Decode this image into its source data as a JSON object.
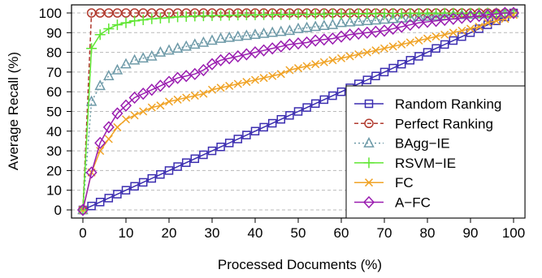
{
  "chart_data": {
    "type": "line",
    "title": "",
    "xlabel": "Processed Documents (%)",
    "ylabel": "Average Recall (%)",
    "xlim": [
      0,
      100
    ],
    "ylim": [
      0,
      100
    ],
    "xticks": [
      0,
      10,
      20,
      30,
      40,
      50,
      60,
      70,
      80,
      90,
      100
    ],
    "yticks": [
      0,
      10,
      20,
      30,
      40,
      50,
      60,
      70,
      80,
      90,
      100
    ],
    "grid": "horizontal dashed",
    "legend_position": "bottom-right",
    "series": [
      {
        "name": "Random Ranking",
        "color": "#3b2db0",
        "marker": "square",
        "dash": "solid",
        "x": [
          0,
          2,
          4,
          6,
          8,
          10,
          12,
          14,
          16,
          18,
          20,
          22,
          24,
          26,
          28,
          30,
          32,
          34,
          36,
          38,
          40,
          42,
          44,
          46,
          48,
          50,
          52,
          54,
          56,
          58,
          60,
          62,
          64,
          66,
          68,
          70,
          72,
          74,
          76,
          78,
          80,
          82,
          84,
          86,
          88,
          90,
          92,
          94,
          96,
          98,
          100
        ],
        "y": [
          0,
          2,
          4,
          6,
          8,
          10,
          12,
          14,
          16,
          18,
          20,
          22,
          24,
          26,
          28,
          30,
          32,
          34,
          36,
          38,
          40,
          42,
          44,
          46,
          48,
          50,
          52,
          54,
          56,
          58,
          60,
          62,
          64,
          66,
          68,
          70,
          72,
          74,
          76,
          78,
          80,
          82,
          84,
          86,
          88,
          90,
          92,
          94,
          96,
          98,
          100
        ]
      },
      {
        "name": "Perfect Ranking",
        "color": "#b03a2e",
        "marker": "circle",
        "dash": "dashed",
        "x": [
          0,
          2,
          4,
          6,
          8,
          10,
          12,
          14,
          16,
          18,
          20,
          22,
          24,
          26,
          28,
          30,
          32,
          34,
          36,
          38,
          40,
          42,
          44,
          46,
          48,
          50,
          52,
          54,
          56,
          58,
          60,
          62,
          64,
          66,
          68,
          70,
          72,
          74,
          76,
          78,
          80,
          82,
          84,
          86,
          88,
          90,
          92,
          94,
          96,
          98,
          100
        ],
        "y": [
          0,
          100,
          100,
          100,
          100,
          100,
          100,
          100,
          100,
          100,
          100,
          100,
          100,
          100,
          100,
          100,
          100,
          100,
          100,
          100,
          100,
          100,
          100,
          100,
          100,
          100,
          100,
          100,
          100,
          100,
          100,
          100,
          100,
          100,
          100,
          100,
          100,
          100,
          100,
          100,
          100,
          100,
          100,
          100,
          100,
          100,
          100,
          100,
          100,
          100,
          100
        ]
      },
      {
        "name": "BAgg−IE",
        "color": "#6e9aa8",
        "marker": "triangle",
        "dash": "dotted",
        "x": [
          0,
          2,
          4,
          6,
          8,
          10,
          12,
          14,
          16,
          18,
          20,
          22,
          24,
          26,
          28,
          30,
          32,
          34,
          36,
          38,
          40,
          42,
          44,
          46,
          48,
          50,
          52,
          54,
          56,
          58,
          60,
          62,
          64,
          66,
          68,
          70,
          72,
          74,
          76,
          78,
          80,
          82,
          84,
          86,
          88,
          90,
          92,
          94,
          96,
          98,
          100
        ],
        "y": [
          0,
          55,
          63,
          68,
          71,
          74,
          76,
          77,
          78,
          80,
          81,
          82,
          83,
          84,
          85,
          86,
          87,
          87.5,
          88,
          88.5,
          89,
          89.5,
          90,
          90.5,
          91,
          92,
          92.5,
          93,
          93.5,
          94,
          95,
          95.3,
          95.7,
          96,
          96.3,
          96.7,
          97,
          97.3,
          97.6,
          98,
          98.2,
          98.4,
          98.6,
          98.8,
          99,
          99.2,
          99.4,
          99.5,
          99.7,
          99.8,
          100
        ]
      },
      {
        "name": "RSVM−IE",
        "color": "#5fe632",
        "marker": "plus",
        "dash": "solid",
        "x": [
          0,
          2,
          4,
          6,
          8,
          10,
          12,
          14,
          16,
          18,
          20,
          22,
          24,
          26,
          28,
          30,
          32,
          34,
          36,
          38,
          40,
          42,
          44,
          46,
          48,
          50,
          52,
          54,
          56,
          58,
          60,
          62,
          64,
          66,
          68,
          70,
          72,
          74,
          76,
          78,
          80,
          82,
          84,
          86,
          88,
          90,
          92,
          94,
          96,
          98,
          100
        ],
        "y": [
          0,
          82,
          89,
          92,
          94,
          95,
          96,
          96.5,
          97,
          97.3,
          97.6,
          98,
          98.2,
          98.4,
          98.5,
          98.6,
          98.7,
          98.8,
          98.9,
          99,
          99,
          99.1,
          99.1,
          99.2,
          99.2,
          99.3,
          99.3,
          99.4,
          99.4,
          99.5,
          99.5,
          99.5,
          99.6,
          99.6,
          99.6,
          99.7,
          99.7,
          99.7,
          99.8,
          99.8,
          99.8,
          99.8,
          99.9,
          99.9,
          99.9,
          99.9,
          100,
          100,
          100,
          100,
          100
        ]
      },
      {
        "name": "FC",
        "color": "#f0a326",
        "marker": "x",
        "dash": "solid",
        "x": [
          0,
          2,
          4,
          6,
          8,
          10,
          12,
          14,
          16,
          18,
          20,
          22,
          24,
          26,
          28,
          30,
          32,
          34,
          36,
          38,
          40,
          42,
          44,
          46,
          48,
          50,
          52,
          54,
          56,
          58,
          60,
          62,
          64,
          66,
          68,
          70,
          72,
          74,
          76,
          78,
          80,
          82,
          84,
          86,
          88,
          90,
          92,
          94,
          96,
          98,
          100
        ],
        "y": [
          0,
          19,
          30,
          36,
          42,
          46,
          48,
          50,
          52,
          53,
          55,
          56,
          57,
          58,
          59,
          61,
          62,
          63,
          64,
          65,
          66,
          67,
          68,
          69,
          71,
          72,
          73,
          74,
          75,
          76,
          77,
          78,
          79,
          80,
          81,
          82,
          83,
          84,
          85,
          86,
          87,
          88,
          89,
          90,
          91,
          92,
          93,
          95,
          96,
          97,
          99
        ]
      },
      {
        "name": "A−FC",
        "color": "#9a1db0",
        "marker": "diamond",
        "dash": "solid",
        "x": [
          0,
          2,
          4,
          6,
          8,
          10,
          12,
          14,
          16,
          18,
          20,
          22,
          24,
          26,
          28,
          30,
          32,
          34,
          36,
          38,
          40,
          42,
          44,
          46,
          48,
          50,
          52,
          54,
          56,
          58,
          60,
          62,
          64,
          66,
          68,
          70,
          72,
          74,
          76,
          78,
          80,
          82,
          84,
          86,
          88,
          90,
          92,
          94,
          96,
          98,
          100
        ],
        "y": [
          0,
          19,
          34,
          42,
          49,
          53,
          57,
          59,
          61,
          63,
          65,
          67,
          68,
          69,
          71,
          74,
          76,
          77,
          78,
          79,
          80,
          81,
          82,
          83,
          84,
          84.5,
          85,
          86,
          86.5,
          87,
          88,
          89,
          89.5,
          90,
          90.5,
          91,
          92,
          93,
          94,
          95,
          95.5,
          96,
          96.5,
          97,
          97.5,
          98,
          98.5,
          99,
          99.5,
          100,
          100
        ]
      }
    ]
  }
}
